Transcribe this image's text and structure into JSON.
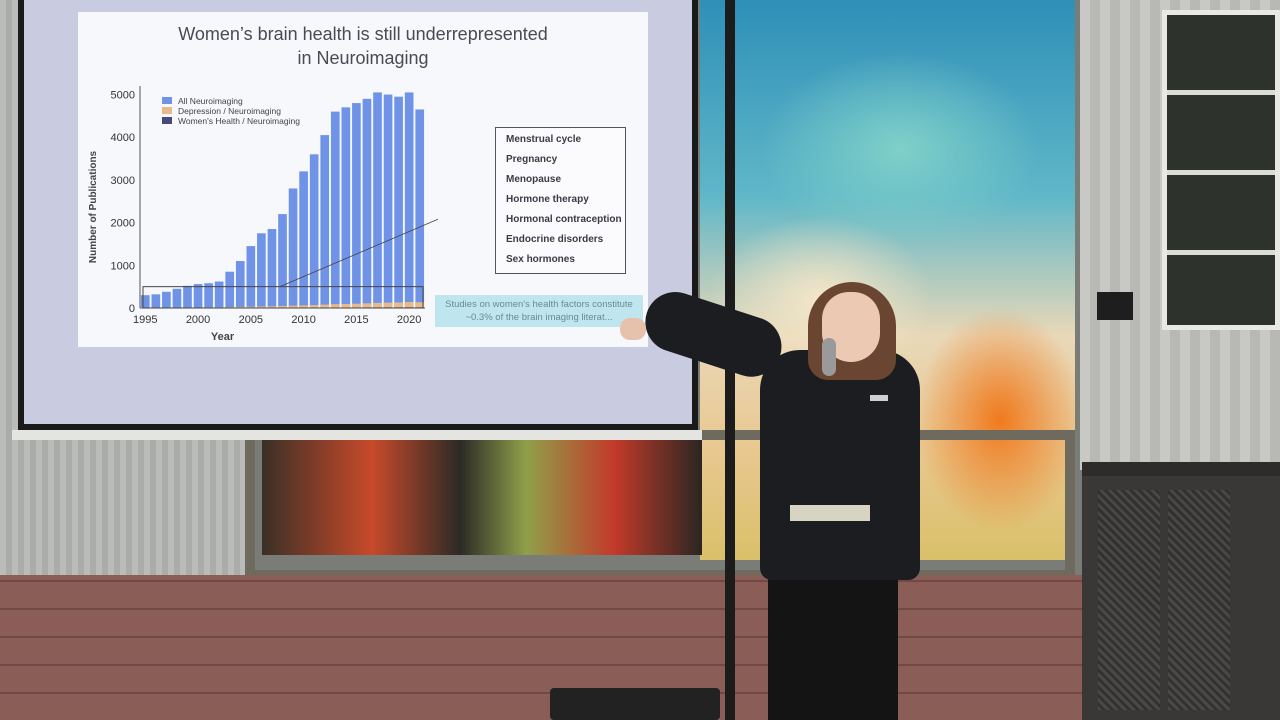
{
  "slide": {
    "title": "Women’s brain health is still underrepresented\nin Neuroimaging",
    "topics": [
      "Menstrual cycle",
      "Pregnancy",
      "Menopause",
      "Hormone therapy",
      "Hormonal contraception",
      "Endocrine disorders",
      "Sex hormones"
    ],
    "note": "Studies on women's health factors constitute ~0.3% of the brain imaging literat..."
  },
  "colors": {
    "all_neuroimaging": "#6f93e6",
    "depression": "#e8b98a",
    "womens_health": "#4a4a7a",
    "slide_background": "#f7f8fc",
    "note_background": "#bfe6ee"
  },
  "chart_data": {
    "type": "bar",
    "xlabel": "Year",
    "ylabel": "Number of Publications",
    "ylim": [
      0,
      5200
    ],
    "yticks": [
      0,
      1000,
      2000,
      3000,
      4000,
      5000
    ],
    "xticks": [
      1995,
      2000,
      2005,
      2010,
      2015,
      2020
    ],
    "legend": [
      "All Neuroimaging",
      "Depression / Neuroimaging",
      "Women's Health / Neuroimaging"
    ],
    "legend_position": "top-left",
    "x": [
      1995,
      1996,
      1997,
      1998,
      1999,
      2000,
      2001,
      2002,
      2003,
      2004,
      2005,
      2006,
      2007,
      2008,
      2009,
      2010,
      2011,
      2012,
      2013,
      2014,
      2015,
      2016,
      2017,
      2018,
      2019,
      2020,
      2021
    ],
    "series": [
      {
        "name": "All Neuroimaging",
        "values": [
          300,
          320,
          380,
          450,
          520,
          560,
          580,
          620,
          850,
          1100,
          1450,
          1750,
          1850,
          2200,
          2800,
          3200,
          3600,
          4050,
          4600,
          4700,
          4800,
          4900,
          5050,
          5000,
          4950,
          5050,
          4650
        ]
      },
      {
        "name": "Depression / Neuroimaging",
        "values": [
          5,
          5,
          6,
          8,
          10,
          12,
          14,
          16,
          20,
          25,
          30,
          35,
          40,
          48,
          55,
          62,
          70,
          80,
          90,
          95,
          100,
          110,
          120,
          125,
          130,
          140,
          135
        ]
      },
      {
        "name": "Women's Health / Neuroimaging",
        "values": [
          1,
          1,
          1,
          1,
          2,
          2,
          2,
          2,
          3,
          3,
          4,
          4,
          5,
          5,
          6,
          7,
          8,
          9,
          10,
          11,
          12,
          13,
          14,
          15,
          15,
          16,
          15
        ]
      }
    ]
  }
}
